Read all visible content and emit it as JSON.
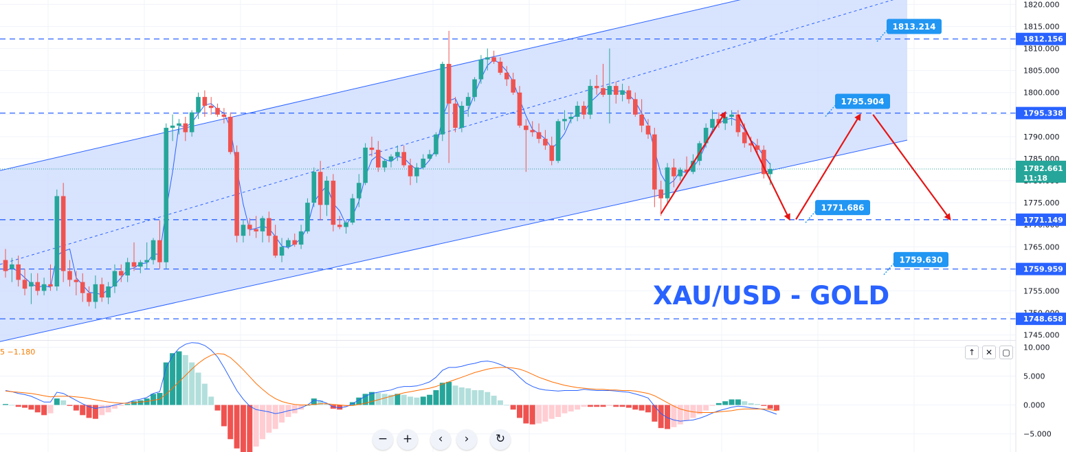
{
  "chart_data": {
    "type": "candlestick",
    "symbol_title": "XAU/USD - GOLD",
    "price_axis": {
      "ticks": [
        "1820.000",
        "1815.000",
        "1810.000",
        "1805.000",
        "1800.000",
        "1795.000",
        "1790.000",
        "1785.000",
        "1780.000",
        "1775.000",
        "1770.000",
        "1765.000",
        "1760.000",
        "1755.000",
        "1750.000",
        "1745.000"
      ],
      "range": [
        1744,
        1821
      ]
    },
    "current_price": {
      "value": "1782.661",
      "countdown": "11:18",
      "numeric": 1782.661
    },
    "horizontal_levels": [
      {
        "label": "1812.156",
        "value": 1812.156
      },
      {
        "label": "1795.338",
        "value": 1795.338
      },
      {
        "label": "1771.149",
        "value": 1771.149
      },
      {
        "label": "1759.959",
        "value": 1759.959
      },
      {
        "label": "1748.658",
        "value": 1748.658
      }
    ],
    "callouts": [
      {
        "label": "1813.214",
        "value": 1813.214
      },
      {
        "label": "1795.904",
        "value": 1795.904
      },
      {
        "label": "1771.686",
        "value": 1771.686
      },
      {
        "label": "1759.630",
        "value": 1759.63
      }
    ],
    "channel": {
      "lower_start": 1743.5,
      "lower_end": 1789.2,
      "upper_start": 1782.3,
      "upper_end": 1829.8,
      "mid_start": 1761.0,
      "mid_end": 1822.0
    },
    "candles": [
      {
        "o": 1762.0,
        "h": 1764.5,
        "l": 1758.0,
        "c": 1759.5
      },
      {
        "o": 1760.0,
        "h": 1762.5,
        "l": 1757.0,
        "c": 1761.0
      },
      {
        "o": 1761.0,
        "h": 1763.0,
        "l": 1756.0,
        "c": 1757.5
      },
      {
        "o": 1757.5,
        "h": 1760.0,
        "l": 1754.0,
        "c": 1755.5
      },
      {
        "o": 1756.0,
        "h": 1759.0,
        "l": 1752.0,
        "c": 1757.0
      },
      {
        "o": 1757.0,
        "h": 1759.0,
        "l": 1754.0,
        "c": 1755.0
      },
      {
        "o": 1755.0,
        "h": 1758.0,
        "l": 1754.0,
        "c": 1756.5
      },
      {
        "o": 1756.5,
        "h": 1761.0,
        "l": 1755.0,
        "c": 1756.0
      },
      {
        "o": 1756.0,
        "h": 1778.0,
        "l": 1755.0,
        "c": 1776.5
      },
      {
        "o": 1776.5,
        "h": 1779.5,
        "l": 1757.0,
        "c": 1759.5
      },
      {
        "o": 1759.5,
        "h": 1762.0,
        "l": 1756.0,
        "c": 1757.5
      },
      {
        "o": 1757.5,
        "h": 1759.5,
        "l": 1754.0,
        "c": 1757.0
      },
      {
        "o": 1757.0,
        "h": 1759.0,
        "l": 1752.5,
        "c": 1754.5
      },
      {
        "o": 1754.5,
        "h": 1756.0,
        "l": 1751.5,
        "c": 1752.5
      },
      {
        "o": 1752.5,
        "h": 1758.5,
        "l": 1751.0,
        "c": 1756.5
      },
      {
        "o": 1756.5,
        "h": 1758.0,
        "l": 1752.5,
        "c": 1753.5
      },
      {
        "o": 1753.5,
        "h": 1757.0,
        "l": 1752.0,
        "c": 1756.0
      },
      {
        "o": 1756.0,
        "h": 1761.0,
        "l": 1754.5,
        "c": 1759.5
      },
      {
        "o": 1759.5,
        "h": 1761.0,
        "l": 1757.0,
        "c": 1758.5
      },
      {
        "o": 1758.5,
        "h": 1762.5,
        "l": 1757.0,
        "c": 1761.5
      },
      {
        "o": 1761.5,
        "h": 1766.0,
        "l": 1759.5,
        "c": 1760.5
      },
      {
        "o": 1760.5,
        "h": 1762.0,
        "l": 1759.0,
        "c": 1761.5
      },
      {
        "o": 1761.5,
        "h": 1766.0,
        "l": 1760.0,
        "c": 1762.0
      },
      {
        "o": 1762.0,
        "h": 1767.0,
        "l": 1761.0,
        "c": 1766.5
      },
      {
        "o": 1766.5,
        "h": 1771.0,
        "l": 1760.0,
        "c": 1761.5
      },
      {
        "o": 1761.5,
        "h": 1793.0,
        "l": 1760.0,
        "c": 1792.0
      },
      {
        "o": 1792.0,
        "h": 1795.0,
        "l": 1789.0,
        "c": 1792.5
      },
      {
        "o": 1792.5,
        "h": 1794.0,
        "l": 1790.5,
        "c": 1793.0
      },
      {
        "o": 1793.0,
        "h": 1794.5,
        "l": 1789.0,
        "c": 1791.0
      },
      {
        "o": 1791.0,
        "h": 1796.0,
        "l": 1790.0,
        "c": 1795.5
      },
      {
        "o": 1795.5,
        "h": 1800.0,
        "l": 1794.0,
        "c": 1799.0
      },
      {
        "o": 1799.0,
        "h": 1800.5,
        "l": 1794.5,
        "c": 1797.0
      },
      {
        "o": 1797.0,
        "h": 1799.0,
        "l": 1795.0,
        "c": 1796.5
      },
      {
        "o": 1796.5,
        "h": 1797.5,
        "l": 1794.5,
        "c": 1795.0
      },
      {
        "o": 1795.0,
        "h": 1796.5,
        "l": 1793.0,
        "c": 1794.5
      },
      {
        "o": 1794.5,
        "h": 1795.5,
        "l": 1786.0,
        "c": 1786.5
      },
      {
        "o": 1786.5,
        "h": 1788.0,
        "l": 1766.0,
        "c": 1767.5
      },
      {
        "o": 1767.5,
        "h": 1771.0,
        "l": 1766.0,
        "c": 1770.0
      },
      {
        "o": 1770.0,
        "h": 1771.5,
        "l": 1767.5,
        "c": 1769.0
      },
      {
        "o": 1769.0,
        "h": 1772.0,
        "l": 1767.0,
        "c": 1768.5
      },
      {
        "o": 1768.5,
        "h": 1772.0,
        "l": 1766.0,
        "c": 1771.5
      },
      {
        "o": 1771.5,
        "h": 1773.0,
        "l": 1766.0,
        "c": 1767.5
      },
      {
        "o": 1767.5,
        "h": 1770.0,
        "l": 1762.5,
        "c": 1763.0
      },
      {
        "o": 1763.0,
        "h": 1767.0,
        "l": 1761.5,
        "c": 1765.0
      },
      {
        "o": 1765.0,
        "h": 1767.0,
        "l": 1764.5,
        "c": 1766.5
      },
      {
        "o": 1766.5,
        "h": 1768.0,
        "l": 1765.0,
        "c": 1765.5
      },
      {
        "o": 1765.5,
        "h": 1770.0,
        "l": 1764.5,
        "c": 1768.5
      },
      {
        "o": 1768.5,
        "h": 1776.0,
        "l": 1768.0,
        "c": 1775.0
      },
      {
        "o": 1775.0,
        "h": 1783.0,
        "l": 1774.0,
        "c": 1782.0
      },
      {
        "o": 1782.0,
        "h": 1784.5,
        "l": 1771.0,
        "c": 1774.5
      },
      {
        "o": 1774.5,
        "h": 1781.0,
        "l": 1772.0,
        "c": 1780.0
      },
      {
        "o": 1780.0,
        "h": 1781.5,
        "l": 1768.5,
        "c": 1770.0
      },
      {
        "o": 1770.0,
        "h": 1772.0,
        "l": 1769.0,
        "c": 1769.5
      },
      {
        "o": 1769.5,
        "h": 1771.0,
        "l": 1768.0,
        "c": 1770.5
      },
      {
        "o": 1770.5,
        "h": 1777.0,
        "l": 1770.0,
        "c": 1776.0
      },
      {
        "o": 1776.0,
        "h": 1781.5,
        "l": 1774.0,
        "c": 1779.5
      },
      {
        "o": 1779.5,
        "h": 1788.5,
        "l": 1779.0,
        "c": 1787.5
      },
      {
        "o": 1787.5,
        "h": 1790.0,
        "l": 1785.5,
        "c": 1787.0
      },
      {
        "o": 1787.0,
        "h": 1789.0,
        "l": 1782.0,
        "c": 1783.0
      },
      {
        "o": 1783.0,
        "h": 1785.0,
        "l": 1782.0,
        "c": 1784.5
      },
      {
        "o": 1784.5,
        "h": 1786.0,
        "l": 1783.0,
        "c": 1785.5
      },
      {
        "o": 1785.5,
        "h": 1788.0,
        "l": 1784.5,
        "c": 1786.5
      },
      {
        "o": 1786.5,
        "h": 1788.0,
        "l": 1783.0,
        "c": 1783.5
      },
      {
        "o": 1783.5,
        "h": 1785.0,
        "l": 1779.0,
        "c": 1781.0
      },
      {
        "o": 1781.0,
        "h": 1784.0,
        "l": 1779.5,
        "c": 1783.0
      },
      {
        "o": 1783.0,
        "h": 1786.0,
        "l": 1782.5,
        "c": 1785.0
      },
      {
        "o": 1785.0,
        "h": 1787.0,
        "l": 1784.5,
        "c": 1786.0
      },
      {
        "o": 1786.0,
        "h": 1791.0,
        "l": 1785.5,
        "c": 1790.5
      },
      {
        "o": 1790.5,
        "h": 1807.0,
        "l": 1789.0,
        "c": 1806.5
      },
      {
        "o": 1806.5,
        "h": 1814.0,
        "l": 1784.0,
        "c": 1797.5
      },
      {
        "o": 1797.5,
        "h": 1799.0,
        "l": 1791.0,
        "c": 1792.0
      },
      {
        "o": 1792.0,
        "h": 1798.0,
        "l": 1791.0,
        "c": 1797.0
      },
      {
        "o": 1797.0,
        "h": 1800.0,
        "l": 1794.5,
        "c": 1799.0
      },
      {
        "o": 1799.0,
        "h": 1803.5,
        "l": 1798.0,
        "c": 1803.0
      },
      {
        "o": 1803.0,
        "h": 1808.5,
        "l": 1802.0,
        "c": 1807.5
      },
      {
        "o": 1807.5,
        "h": 1810.0,
        "l": 1805.0,
        "c": 1808.0
      },
      {
        "o": 1808.0,
        "h": 1809.5,
        "l": 1806.5,
        "c": 1807.0
      },
      {
        "o": 1807.0,
        "h": 1808.0,
        "l": 1804.0,
        "c": 1804.5
      },
      {
        "o": 1804.5,
        "h": 1806.0,
        "l": 1801.5,
        "c": 1803.0
      },
      {
        "o": 1803.0,
        "h": 1804.5,
        "l": 1799.5,
        "c": 1800.0
      },
      {
        "o": 1800.0,
        "h": 1801.5,
        "l": 1792.0,
        "c": 1792.5
      },
      {
        "o": 1792.5,
        "h": 1794.0,
        "l": 1782.0,
        "c": 1791.5
      },
      {
        "o": 1791.5,
        "h": 1793.5,
        "l": 1790.0,
        "c": 1791.0
      },
      {
        "o": 1791.0,
        "h": 1793.0,
        "l": 1788.5,
        "c": 1789.5
      },
      {
        "o": 1789.5,
        "h": 1791.5,
        "l": 1787.0,
        "c": 1788.0
      },
      {
        "o": 1788.0,
        "h": 1790.0,
        "l": 1783.5,
        "c": 1784.5
      },
      {
        "o": 1784.5,
        "h": 1794.0,
        "l": 1784.0,
        "c": 1793.5
      },
      {
        "o": 1793.5,
        "h": 1796.0,
        "l": 1791.5,
        "c": 1794.0
      },
      {
        "o": 1794.0,
        "h": 1795.5,
        "l": 1793.0,
        "c": 1794.5
      },
      {
        "o": 1794.5,
        "h": 1798.0,
        "l": 1793.5,
        "c": 1797.0
      },
      {
        "o": 1797.0,
        "h": 1798.0,
        "l": 1794.0,
        "c": 1795.0
      },
      {
        "o": 1795.0,
        "h": 1803.0,
        "l": 1794.0,
        "c": 1801.5
      },
      {
        "o": 1801.5,
        "h": 1804.0,
        "l": 1799.5,
        "c": 1801.0
      },
      {
        "o": 1801.0,
        "h": 1806.5,
        "l": 1799.0,
        "c": 1799.5
      },
      {
        "o": 1799.5,
        "h": 1810.0,
        "l": 1793.0,
        "c": 1801.5
      },
      {
        "o": 1801.5,
        "h": 1802.5,
        "l": 1797.5,
        "c": 1799.5
      },
      {
        "o": 1799.5,
        "h": 1802.0,
        "l": 1798.0,
        "c": 1800.5
      },
      {
        "o": 1800.5,
        "h": 1801.5,
        "l": 1797.5,
        "c": 1798.5
      },
      {
        "o": 1798.5,
        "h": 1800.0,
        "l": 1794.5,
        "c": 1795.0
      },
      {
        "o": 1795.0,
        "h": 1798.5,
        "l": 1791.0,
        "c": 1792.5
      },
      {
        "o": 1792.5,
        "h": 1794.0,
        "l": 1789.5,
        "c": 1790.5
      },
      {
        "o": 1790.5,
        "h": 1792.0,
        "l": 1774.0,
        "c": 1778.0
      },
      {
        "o": 1778.0,
        "h": 1780.0,
        "l": 1772.0,
        "c": 1776.0
      },
      {
        "o": 1776.0,
        "h": 1784.0,
        "l": 1775.0,
        "c": 1783.0
      },
      {
        "o": 1783.0,
        "h": 1785.0,
        "l": 1778.5,
        "c": 1781.0
      },
      {
        "o": 1781.0,
        "h": 1783.0,
        "l": 1780.0,
        "c": 1782.5
      },
      {
        "o": 1782.5,
        "h": 1785.5,
        "l": 1781.5,
        "c": 1782.0
      },
      {
        "o": 1782.0,
        "h": 1786.0,
        "l": 1781.5,
        "c": 1784.5
      },
      {
        "o": 1784.5,
        "h": 1789.0,
        "l": 1783.5,
        "c": 1788.5
      },
      {
        "o": 1788.5,
        "h": 1793.0,
        "l": 1787.5,
        "c": 1792.0
      },
      {
        "o": 1792.0,
        "h": 1796.0,
        "l": 1791.0,
        "c": 1794.0
      },
      {
        "o": 1794.0,
        "h": 1795.5,
        "l": 1792.0,
        "c": 1793.0
      },
      {
        "o": 1793.0,
        "h": 1795.0,
        "l": 1791.5,
        "c": 1794.5
      },
      {
        "o": 1794.5,
        "h": 1796.0,
        "l": 1792.5,
        "c": 1795.0
      },
      {
        "o": 1795.0,
        "h": 1796.0,
        "l": 1790.0,
        "c": 1791.0
      },
      {
        "o": 1791.0,
        "h": 1793.0,
        "l": 1787.5,
        "c": 1788.5
      },
      {
        "o": 1788.5,
        "h": 1790.0,
        "l": 1786.5,
        "c": 1788.0
      },
      {
        "o": 1788.0,
        "h": 1789.5,
        "l": 1786.0,
        "c": 1787.0
      },
      {
        "o": 1787.0,
        "h": 1788.0,
        "l": 1780.5,
        "c": 1781.5
      },
      {
        "o": 1781.5,
        "h": 1784.0,
        "l": 1779.0,
        "c": 1782.66
      }
    ],
    "projection_arrows": [
      {
        "from": [
          102,
          1772.5
        ],
        "to": [
          112,
          1795.5
        ]
      },
      {
        "from": [
          114,
          1795.0
        ],
        "to": [
          122,
          1771.2
        ]
      },
      {
        "from": [
          123,
          1771.2
        ],
        "to": [
          133,
          1795.0
        ]
      },
      {
        "from": [
          135,
          1795.0
        ],
        "to": [
          147,
          1771.2
        ]
      }
    ],
    "macd": {
      "label": "5  −1.180",
      "ticks": [
        "10.000",
        "5.000",
        "0.000",
        "−5.000"
      ],
      "range": [
        -6,
        11
      ],
      "macd_line": [
        2.5,
        2.3,
        2.0,
        1.8,
        1.5,
        1.0,
        0.5,
        0.5,
        2.2,
        2.0,
        1.4,
        0.8,
        0.2,
        -0.3,
        -0.6,
        -0.4,
        -0.3,
        0.0,
        0.2,
        0.4,
        0.8,
        1.0,
        1.3,
        2.0,
        2.3,
        6.5,
        8.5,
        9.8,
        10.5,
        10.8,
        10.7,
        10.3,
        9.5,
        8.3,
        6.5,
        4.5,
        2.5,
        1.0,
        -0.2,
        -0.8,
        -1.0,
        -1.2,
        -1.5,
        -1.3,
        -1.0,
        -0.8,
        -0.5,
        0.0,
        0.8,
        0.7,
        0.3,
        -0.3,
        -0.5,
        -0.3,
        0.2,
        0.9,
        1.5,
        2.0,
        2.2,
        2.4,
        2.6,
        3.0,
        3.2,
        3.2,
        3.3,
        3.6,
        4.0,
        4.8,
        6.0,
        6.5,
        6.5,
        6.7,
        7.0,
        7.2,
        7.5,
        7.6,
        7.4,
        7.0,
        6.5,
        5.9,
        4.8,
        3.8,
        3.2,
        2.8,
        2.6,
        2.5,
        2.4,
        2.5,
        2.5,
        2.5,
        2.7,
        2.6,
        2.5,
        2.5,
        2.5,
        2.4,
        2.3,
        2.2,
        1.9,
        1.6,
        1.2,
        -0.2,
        -1.5,
        -2.2,
        -2.6,
        -2.8,
        -2.7,
        -2.6,
        -2.3,
        -1.9,
        -1.4,
        -1.0,
        -0.7,
        -0.4,
        -0.2,
        -0.3,
        -0.5,
        -0.6,
        -0.8,
        -1.2,
        -1.6
      ],
      "signal_line": [
        2.4,
        2.3,
        2.2,
        2.1,
        2.0,
        1.8,
        1.6,
        1.4,
        1.5,
        1.5,
        1.5,
        1.4,
        1.3,
        1.1,
        0.9,
        0.7,
        0.5,
        0.4,
        0.3,
        0.3,
        0.4,
        0.5,
        0.6,
        0.8,
        1.0,
        1.9,
        2.9,
        4.0,
        5.1,
        6.2,
        7.2,
        8.0,
        8.6,
        8.9,
        8.8,
        8.2,
        7.2,
        6.1,
        4.9,
        3.7,
        2.7,
        1.8,
        1.1,
        0.6,
        0.3,
        0.1,
        0.0,
        0.0,
        0.1,
        0.2,
        0.2,
        0.1,
        0.0,
        -0.1,
        -0.1,
        0.1,
        0.3,
        0.6,
        0.9,
        1.2,
        1.5,
        1.8,
        2.1,
        2.3,
        2.5,
        2.7,
        2.9,
        3.2,
        3.6,
        4.0,
        4.4,
        4.8,
        5.2,
        5.6,
        5.9,
        6.2,
        6.4,
        6.5,
        6.5,
        6.4,
        6.2,
        5.8,
        5.3,
        4.8,
        4.4,
        4.0,
        3.7,
        3.4,
        3.2,
        3.0,
        2.9,
        2.8,
        2.7,
        2.7,
        2.6,
        2.6,
        2.5,
        2.5,
        2.4,
        2.2,
        2.0,
        1.6,
        1.0,
        0.4,
        -0.2,
        -0.7,
        -1.0,
        -1.2,
        -1.3,
        -1.3,
        -1.3,
        -1.2,
        -1.1,
        -1.0,
        -0.8,
        -0.7,
        -0.7,
        -0.7,
        -0.7,
        -0.8,
        -1.0
      ]
    },
    "colors": {
      "up": "#26a69a",
      "down": "#ef5350",
      "up_light": "#b2dfdb",
      "down_light": "#ffcdd2",
      "level_line": "#2962ff",
      "channel_fill": "#d1defe",
      "channel_line": "#2962ff",
      "arrow": "#e51515",
      "ema": "#2962ff",
      "macd_line": "#2962ff",
      "signal_line": "#ff6d00",
      "last_price_tag": "#26a69a",
      "level_tag": "#2962ff",
      "callout": "#2196f3"
    }
  },
  "controls": {
    "zoom_out": "−",
    "zoom_in": "+",
    "scroll_left": "‹",
    "scroll_right": "›",
    "reset": "↻",
    "pane_up": "↑",
    "pane_close": "✕",
    "pane_maximize": "▢"
  }
}
